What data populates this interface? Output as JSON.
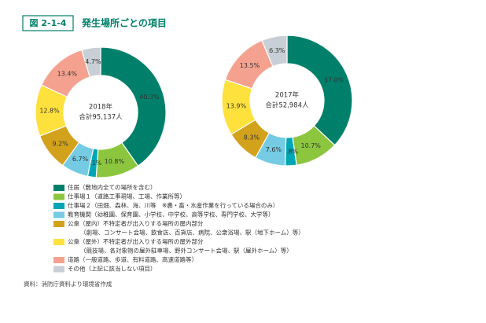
{
  "figure_label": "図 2-1-4",
  "title": "発生場所ごとの項目",
  "legend": [
    {
      "name": "住居（敷地内全ての場所を含む）",
      "color": "#00806a"
    },
    {
      "name": "仕事場１（道路工事現場、工場、作業所等）",
      "color": "#8cc63f"
    },
    {
      "name": "仕事場２（田畑、森林、海、川等　※農・畜・水産作業を行っている場合のみ）",
      "color": "#00a6b6"
    },
    {
      "name": "教育機関（幼稚園、保育園、小学校、中学校、高等学校、専門学校、大学等）",
      "color": "#74cbe3"
    },
    {
      "name": "公衆（屋内）不特定者が出入りする場所の屋内部分",
      "note": "（劇場、コンサート会場、飲食店、百貨店、病院、公衆浴場、駅（地下ホーム）等）",
      "color": "#d3a21c"
    },
    {
      "name": "公衆（屋外）不特定者が出入りする場所の屋外部分",
      "note": "（競技場、各対象物の屋外駐車場、野外コンサート会場、駅（屋外ホーム）等）",
      "color": "#ffe13d"
    },
    {
      "name": "道路（一般道路、歩道、有料道路、高速道路等）",
      "color": "#f4a28f"
    },
    {
      "name": "その他（上記に該当しない項目）",
      "color": "#c9cfd6"
    }
  ],
  "source": "資料：消防庁資料より環境省作成",
  "chart_data": [
    {
      "type": "pie",
      "year_label": "2018年",
      "total_label": "合計95,137人",
      "values": [
        40.3,
        10.8,
        2.1,
        6.7,
        9.2,
        12.8,
        13.4,
        4.7
      ],
      "value_labels": [
        "40.3%",
        "10.8%",
        "2.1%",
        "6.7%",
        "9.2%",
        "12.8%",
        "13.4%",
        "4.7%"
      ]
    },
    {
      "type": "pie",
      "year_label": "2017年",
      "total_label": "合計52,984人",
      "values": [
        37.0,
        10.7,
        2.8,
        7.6,
        8.3,
        13.9,
        13.5,
        6.3
      ],
      "value_labels": [
        "37.0%",
        "10.7%",
        "2.8%",
        "7.6%",
        "8.3%",
        "13.9%",
        "13.5%",
        "6.3%"
      ]
    }
  ]
}
